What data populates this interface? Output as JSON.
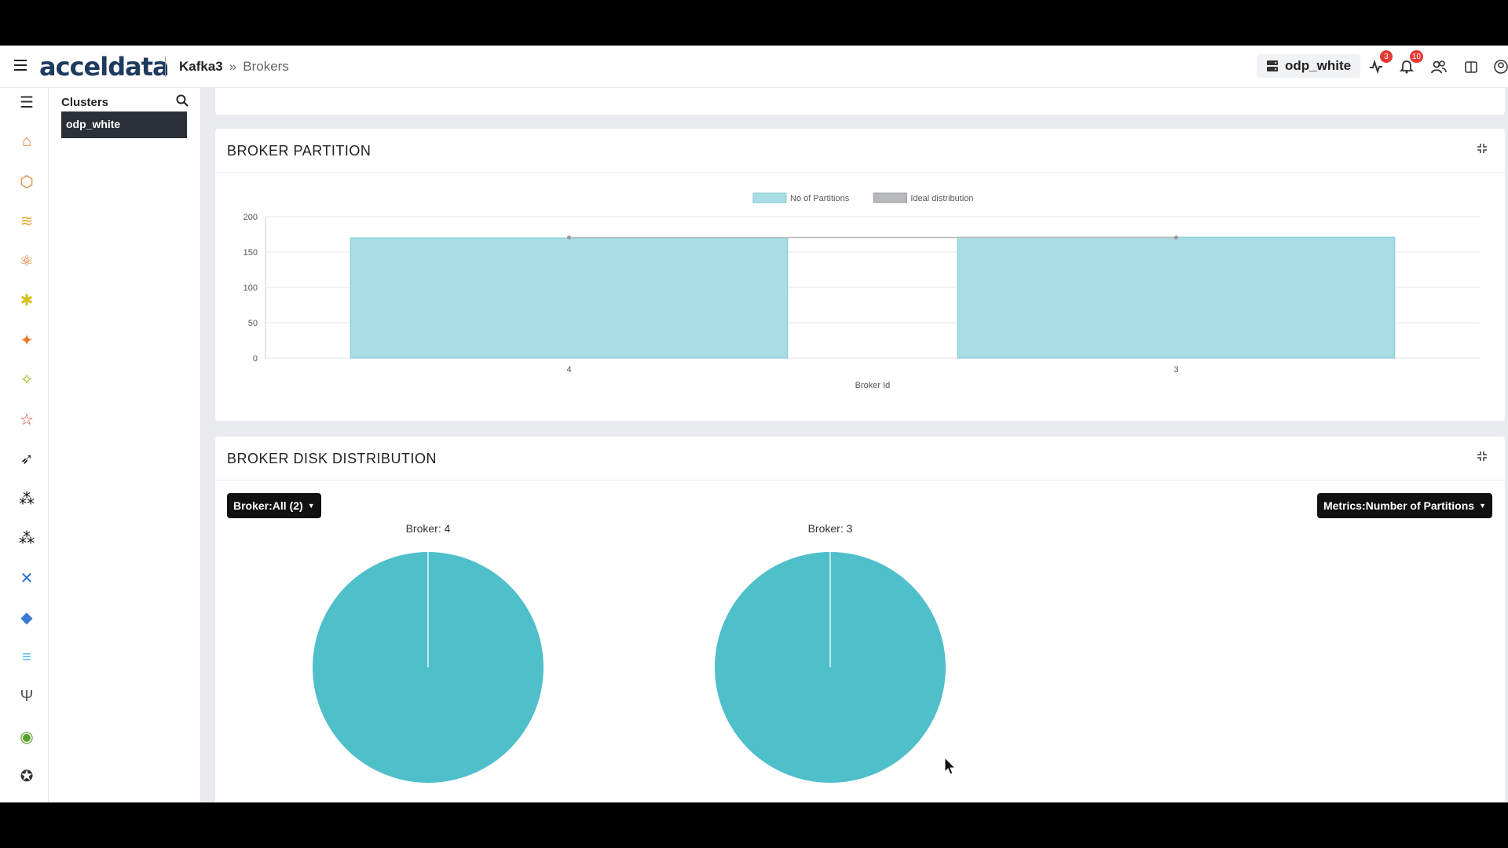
{
  "header": {
    "logo": "acceldata",
    "breadcrumb": {
      "root": "Kafka3",
      "separator": "»",
      "current": "Brokers"
    },
    "cluster_name": "odp_white",
    "alerts_badge": "3",
    "notifications_badge": "10"
  },
  "rail_icons": [
    "database-icon",
    "home-icon",
    "cube-icon",
    "layers-icon",
    "hierarchy-icon",
    "hadoop-icon",
    "hive-icon",
    "yarn-icon",
    "spark-icon",
    "impala-icon",
    "kafka-icon",
    "kafka-alt-icon",
    "airflow-icon",
    "zookeeper-icon",
    "nifi-icon",
    "ranger-icon",
    "hbase-icon",
    "druid-icon",
    "file-icon"
  ],
  "clusters_panel": {
    "title": "Clusters",
    "items": [
      "odp_white"
    ]
  },
  "broker_partition": {
    "title": "BROKER PARTITION",
    "chart_data": {
      "type": "bar",
      "categories": [
        "4",
        "3"
      ],
      "series": [
        {
          "name": "No of Partitions",
          "values": [
            170,
            171
          ],
          "color": "#a8dde6"
        },
        {
          "name": "Ideal distribution",
          "values": [
            170.5,
            170.5
          ],
          "color": "#b7b9bd",
          "kind": "line"
        }
      ],
      "xlabel": "Broker Id",
      "ylabel": "",
      "ylim": [
        0,
        200
      ],
      "yticks": [
        "0",
        "50",
        "100",
        "150",
        "200"
      ],
      "legend": "top"
    }
  },
  "broker_disk": {
    "title": "BROKER DISK DISTRIBUTION",
    "broker_filter": "Broker:All (2)",
    "metrics_filter": "Metrics:Number of Partitions",
    "chart_data": [
      {
        "type": "pie",
        "title": "Broker: 4",
        "values": [
          100
        ],
        "color": "#4fbfca"
      },
      {
        "type": "pie",
        "title": "Broker: 3",
        "values": [
          100
        ],
        "color": "#4fbfca"
      }
    ]
  }
}
